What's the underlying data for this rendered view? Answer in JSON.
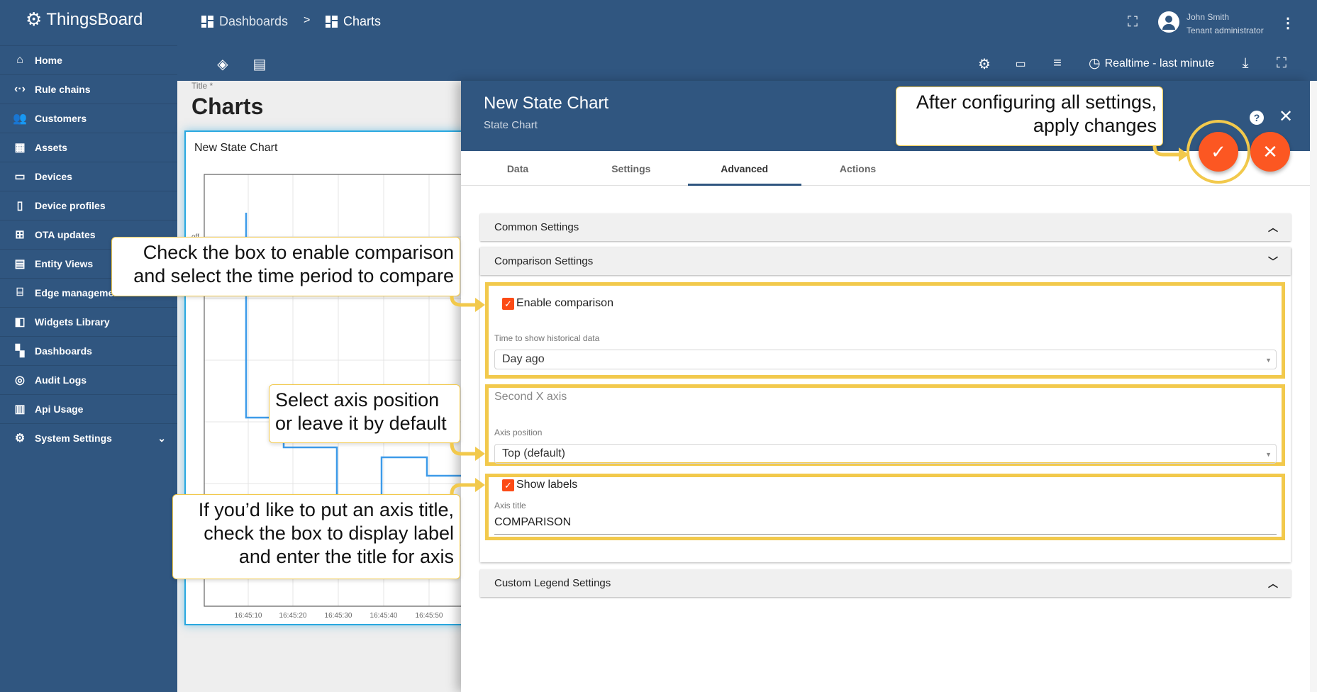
{
  "app": {
    "name": "ThingsBoard"
  },
  "sidebar": {
    "items": [
      {
        "label": "Home",
        "icon": "home-icon"
      },
      {
        "label": "Rule chains",
        "icon": "rule-chains-icon"
      },
      {
        "label": "Customers",
        "icon": "customers-icon"
      },
      {
        "label": "Assets",
        "icon": "assets-icon"
      },
      {
        "label": "Devices",
        "icon": "devices-icon"
      },
      {
        "label": "Device profiles",
        "icon": "device-profiles-icon"
      },
      {
        "label": "OTA updates",
        "icon": "ota-icon"
      },
      {
        "label": "Entity Views",
        "icon": "entity-views-icon"
      },
      {
        "label": "Edge management",
        "icon": "edge-icon"
      },
      {
        "label": "Widgets Library",
        "icon": "widgets-icon"
      },
      {
        "label": "Dashboards",
        "icon": "dashboards-icon"
      },
      {
        "label": "Audit Logs",
        "icon": "audit-logs-icon"
      },
      {
        "label": "Api Usage",
        "icon": "api-usage-icon"
      },
      {
        "label": "System Settings",
        "icon": "gear-icon"
      }
    ]
  },
  "header": {
    "breadcrumb": [
      "Dashboards",
      ">",
      "Charts"
    ],
    "user": {
      "name": "John Smith",
      "role": "Tenant administrator"
    },
    "timewindow": "Realtime - last minute"
  },
  "dashboard": {
    "title_label": "Title *",
    "title": "Charts",
    "widget": {
      "title": "New State Chart",
      "y_label": "off",
      "x_ticks": [
        "16:45:10",
        "16:45:20",
        "16:45:30",
        "16:45:40",
        "16:45:50"
      ],
      "line_color": "#3d9be9"
    }
  },
  "panel": {
    "title": "New State Chart",
    "subtitle": "State Chart",
    "tabs": [
      "Data",
      "Settings",
      "Advanced",
      "Actions"
    ],
    "active_tab": "Advanced",
    "sections": {
      "common": "Common Settings",
      "comparison": "Comparison Settings",
      "legend": "Custom Legend Settings"
    },
    "comparison": {
      "enable_label": "Enable comparison",
      "enable_checked": true,
      "time_label": "Time to show historical data",
      "time_value": "Day ago",
      "second_axis_label": "Second X axis",
      "axis_position_label": "Axis position",
      "axis_position_value": "Top (default)",
      "show_labels_label": "Show labels",
      "show_labels_checked": true,
      "axis_title_label": "Axis title",
      "axis_title_value": "COMPARISON"
    }
  },
  "callouts": {
    "c1": "Check the box to enable comparison\nand select the time period to compare",
    "c2": "Select axis position\nor leave it by default",
    "c3": "If you’d like to put an axis title,\ncheck the box to display label\nand enter the title for axis",
    "c4": "After configuring all settings,\napply changes"
  },
  "colors": {
    "primary": "#305680",
    "accent": "#fc5722",
    "highlight": "#f2c94c"
  }
}
